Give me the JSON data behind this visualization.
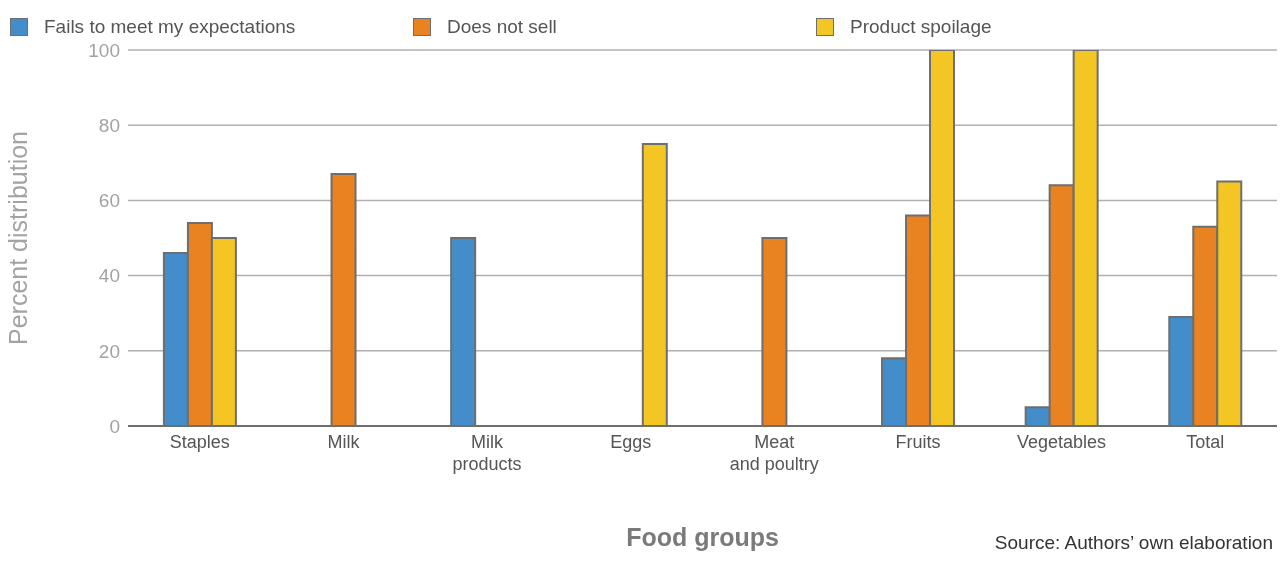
{
  "chart_data": {
    "type": "bar",
    "xlabel": "Food groups",
    "ylabel": "Percent distribution",
    "categories": [
      "Staples",
      "Milk",
      "Milk\nproducts",
      "Eggs",
      "Meat\nand poultry",
      "Fruits",
      "Vegetables",
      "Total"
    ],
    "series": [
      {
        "name": "Fails to meet my expectations",
        "color": "#428dca",
        "values": [
          46,
          null,
          50,
          null,
          null,
          18,
          5,
          29
        ]
      },
      {
        "name": "Does not sell",
        "color": "#e98321",
        "values": [
          54,
          67,
          null,
          null,
          50,
          56,
          64,
          53
        ]
      },
      {
        "name": "Product spoilage",
        "color": "#f4c623",
        "values": [
          50,
          null,
          null,
          75,
          null,
          100,
          100,
          65
        ]
      }
    ],
    "ylim": [
      0,
      100
    ],
    "yticks": [
      0,
      20,
      40,
      60,
      80,
      100
    ],
    "grid": "y",
    "legend": "top left",
    "annotations": [
      "Source: Authors’ own elaboration"
    ]
  }
}
